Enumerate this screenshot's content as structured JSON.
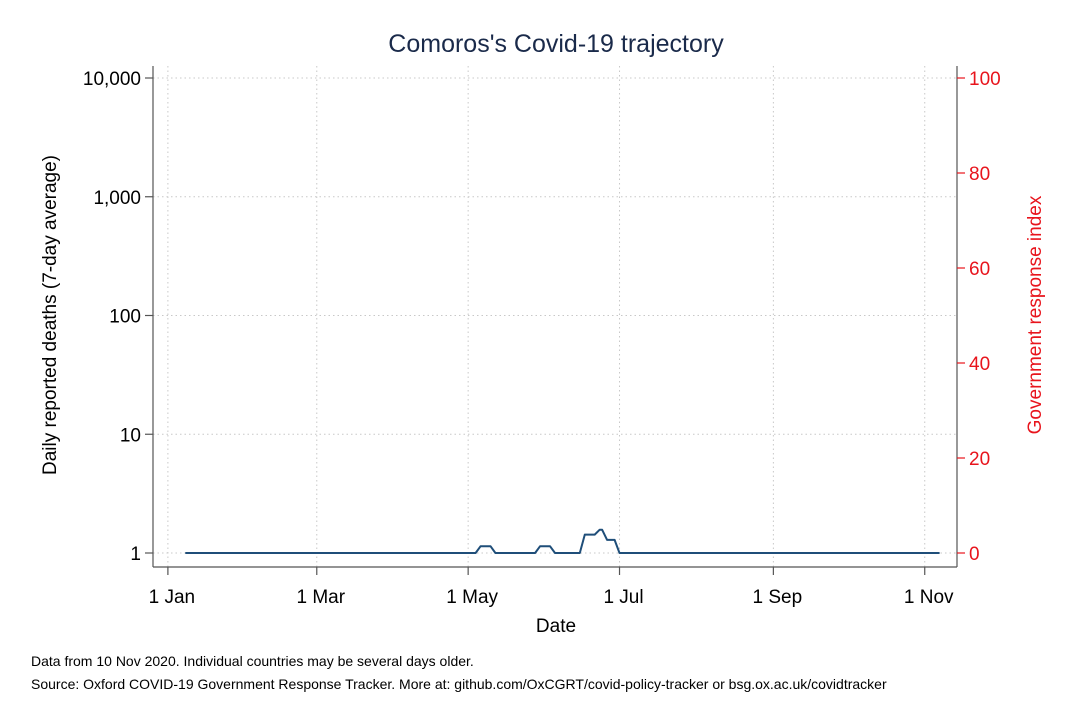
{
  "chart_data": {
    "type": "line",
    "title": "Comoros's Covid-19 trajectory",
    "xlabel": "Date",
    "ylabel": "Daily reported deaths (7-day average)",
    "y2label": "Government response index",
    "yscale": "log",
    "ylim": [
      1,
      10000
    ],
    "y2lim": [
      0,
      100
    ],
    "y_ticks": [
      1,
      10,
      100,
      1000,
      10000
    ],
    "y_tick_labels": [
      "1",
      "10",
      "100",
      "1,000",
      "10,000"
    ],
    "y2_ticks": [
      0,
      20,
      40,
      60,
      80,
      100
    ],
    "y2_tick_labels": [
      "0",
      "20",
      "40",
      "60",
      "80",
      "100"
    ],
    "x_ticks": [
      "2020-01-01",
      "2020-03-01",
      "2020-05-01",
      "2020-07-01",
      "2020-09-01",
      "2020-11-01"
    ],
    "x_tick_labels": [
      "1 Jan",
      "1 Mar",
      "1 May",
      "1 Jul",
      "1 Sep",
      "1 Nov"
    ],
    "xlim": [
      "2019-12-26",
      "2020-11-14"
    ],
    "grid": true,
    "colors": {
      "deaths": "#1f4e79",
      "right_axis": "#e8141c",
      "title": "#1a2a4a"
    },
    "series": [
      {
        "axis": "left",
        "x": [
          "2020-01-08",
          "2020-05-04",
          "2020-05-06",
          "2020-05-10",
          "2020-05-12",
          "2020-05-28",
          "2020-05-30",
          "2020-06-03",
          "2020-06-05",
          "2020-06-15",
          "2020-06-17",
          "2020-06-21",
          "2020-06-23",
          "2020-06-24",
          "2020-06-26",
          "2020-06-29",
          "2020-07-01",
          "2020-11-07"
        ],
        "values": [
          1,
          1,
          1.14,
          1.14,
          1,
          1,
          1.14,
          1.14,
          1,
          1,
          1.43,
          1.43,
          1.57,
          1.57,
          1.29,
          1.29,
          1,
          1
        ]
      }
    ],
    "notes": [
      "Data from 10 Nov 2020. Individual countries may be several days older.",
      "Source: Oxford COVID-19 Government Response Tracker. More at: github.com/OxCGRT/covid-policy-tracker or bsg.ox.ac.uk/covidtracker"
    ]
  }
}
